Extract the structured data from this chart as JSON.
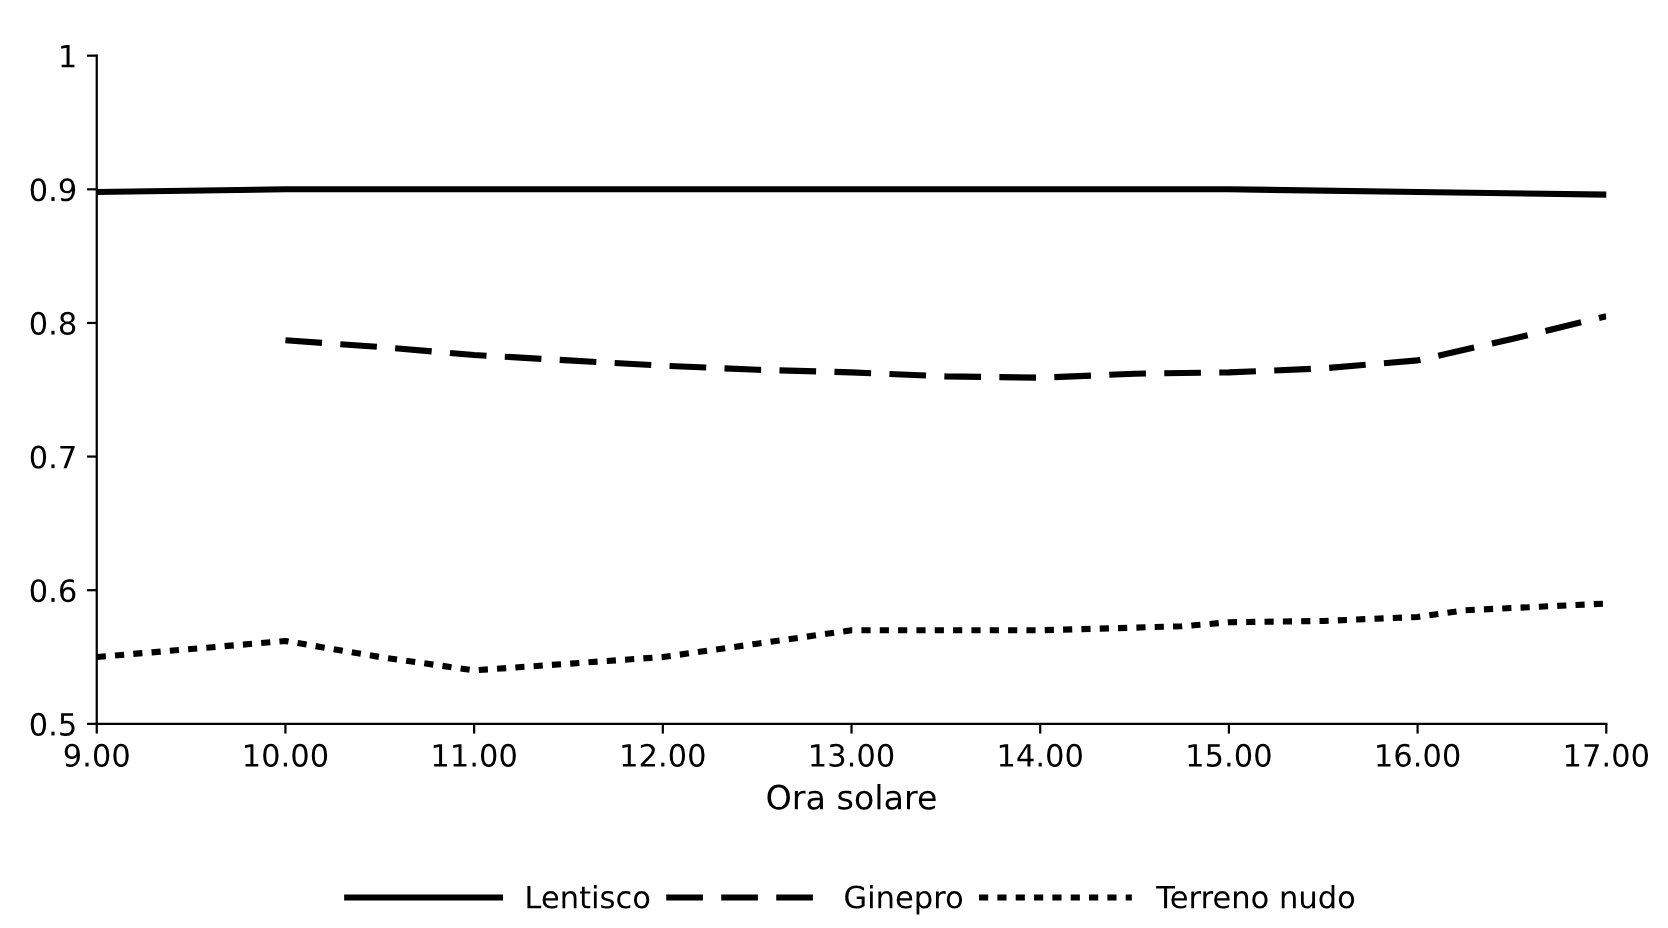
{
  "chart_data": {
    "type": "line",
    "xlabel": "Ora solare",
    "xlim": [
      9,
      17
    ],
    "xticks": [
      {
        "value": 9,
        "label": "9.00"
      },
      {
        "value": 10,
        "label": "10.00"
      },
      {
        "value": 11,
        "label": "11.00"
      },
      {
        "value": 12,
        "label": "12.00"
      },
      {
        "value": 13,
        "label": "13.00"
      },
      {
        "value": 14,
        "label": "14.00"
      },
      {
        "value": 15,
        "label": "15.00"
      },
      {
        "value": 16,
        "label": "16.00"
      },
      {
        "value": 17,
        "label": "17.00"
      }
    ],
    "ylim": [
      0.5,
      1
    ],
    "yticks": [
      0.5,
      0.6,
      0.7,
      0.8,
      0.9,
      1
    ],
    "grid": false,
    "legend": "bottom",
    "marker": "none",
    "series": [
      {
        "name": "Lentisco",
        "color": "#000000",
        "line_style": "solid",
        "x": [
          9,
          10,
          11,
          12,
          13,
          14,
          15,
          16,
          17
        ],
        "values": [
          0.898,
          0.9,
          0.9,
          0.9,
          0.9,
          0.9,
          0.9,
          0.898,
          0.896
        ]
      },
      {
        "name": "Ginepro",
        "color": "#000000",
        "line_style": "dashed",
        "x": [
          10,
          10.5,
          11,
          11.5,
          12,
          12.5,
          13,
          13.5,
          14,
          14.5,
          15,
          15.5,
          16,
          16.5,
          17
        ],
        "values": [
          0.787,
          0.782,
          0.776,
          0.772,
          0.768,
          0.765,
          0.763,
          0.76,
          0.759,
          0.762,
          0.763,
          0.766,
          0.772,
          0.788,
          0.805
        ]
      },
      {
        "name": "Terreno nudo",
        "color": "#000000",
        "line_style": "dotted",
        "x": [
          9,
          10,
          10.5,
          11,
          11.5,
          12,
          12.5,
          13,
          14,
          14.75,
          15,
          15.5,
          16,
          16.25,
          17
        ],
        "values": [
          0.55,
          0.562,
          0.55,
          0.54,
          0.545,
          0.55,
          0.56,
          0.57,
          0.57,
          0.573,
          0.576,
          0.577,
          0.58,
          0.585,
          0.59
        ]
      }
    ]
  }
}
